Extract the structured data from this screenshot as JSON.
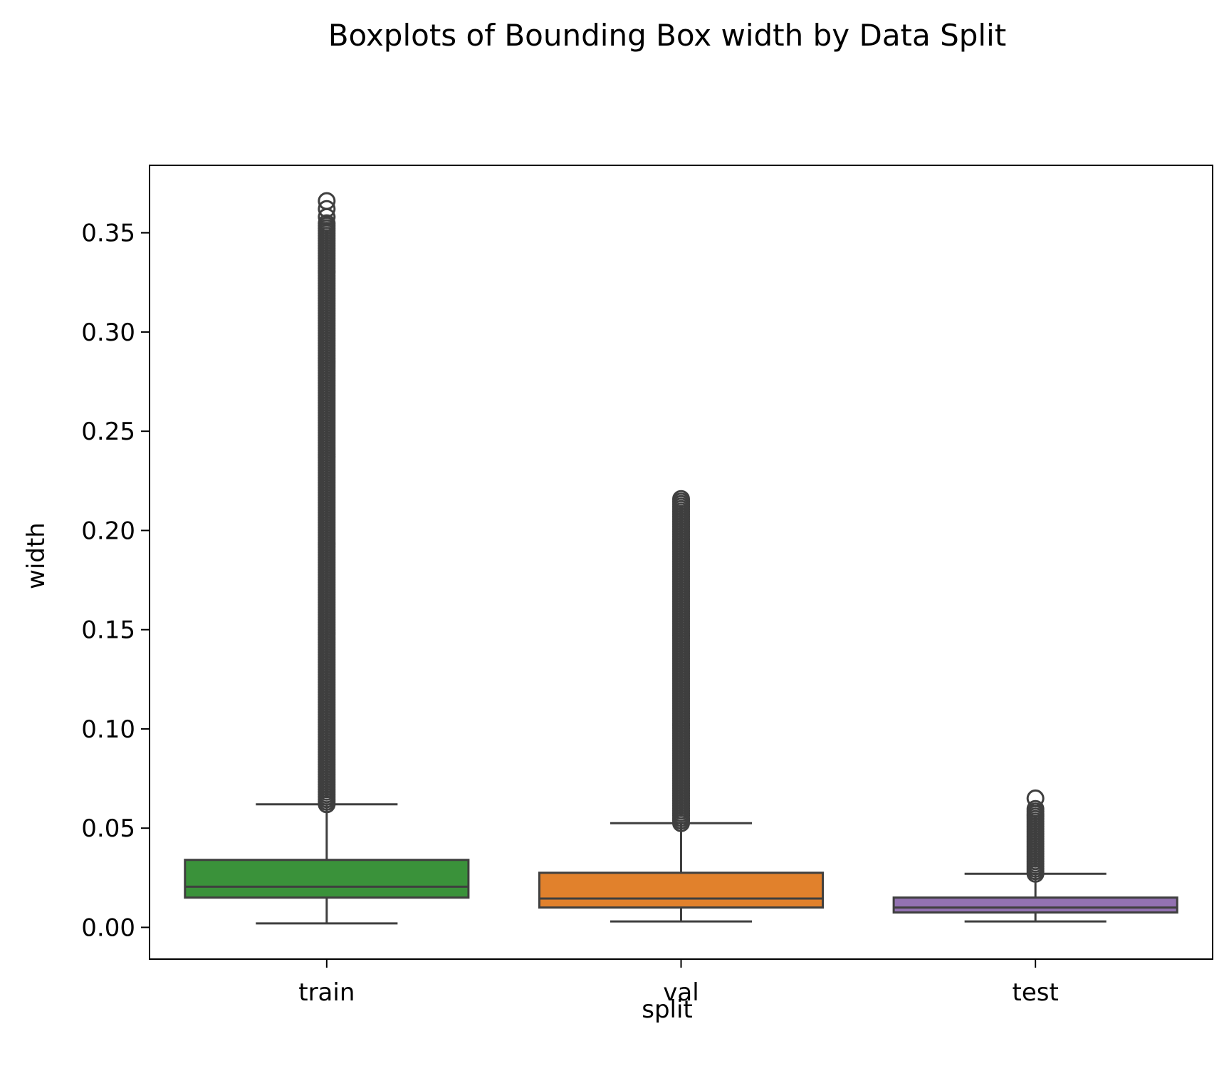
{
  "chart_data": {
    "type": "boxplot",
    "title": "Boxplots of Bounding Box width by Data Split",
    "xlabel": "split",
    "ylabel": "width",
    "ylim": [
      -0.016,
      0.384
    ],
    "yticks": [
      0.0,
      0.05,
      0.1,
      0.15,
      0.2,
      0.25,
      0.3,
      0.35
    ],
    "ytick_labels": [
      "0.00",
      "0.05",
      "0.10",
      "0.15",
      "0.20",
      "0.25",
      "0.30",
      "0.35"
    ],
    "categories": [
      "train",
      "val",
      "test"
    ],
    "grid": false,
    "legend": "none",
    "series": [
      {
        "category": "train",
        "color": "#3a923a",
        "whisker_low": 0.002,
        "q1": 0.015,
        "median": 0.0205,
        "q3": 0.034,
        "whisker_high": 0.062,
        "outlier_range": [
          0.062,
          0.355
        ],
        "outlier_extremes": [
          0.358,
          0.362,
          0.366
        ]
      },
      {
        "category": "val",
        "color": "#e1812c",
        "whisker_low": 0.003,
        "q1": 0.01,
        "median": 0.0145,
        "q3": 0.0275,
        "whisker_high": 0.0525,
        "outlier_range": [
          0.0525,
          0.217
        ],
        "outlier_extremes": []
      },
      {
        "category": "test",
        "color": "#9372b2",
        "whisker_low": 0.003,
        "q1": 0.0075,
        "median": 0.01,
        "q3": 0.015,
        "whisker_high": 0.027,
        "outlier_range": [
          0.027,
          0.06
        ],
        "outlier_extremes": [
          0.065
        ]
      }
    ]
  }
}
